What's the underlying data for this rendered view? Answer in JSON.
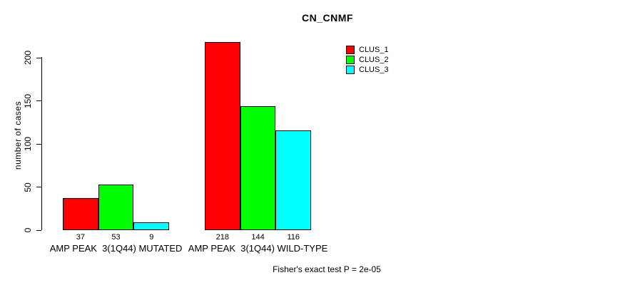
{
  "title": "CN_CNMF",
  "y_axis": {
    "label": "number of cases"
  },
  "caption": "Fisher's exact test P = 2e-05",
  "legend": {
    "items": [
      {
        "label": "CLUS_1",
        "color": "#FF0000"
      },
      {
        "label": "CLUS_2",
        "color": "#00FF00"
      },
      {
        "label": "CLUS_3",
        "color": "#00FFFF"
      }
    ]
  },
  "chart_data": {
    "type": "bar",
    "title": "CN_CNMF",
    "xlabel": "",
    "ylabel": "number of cases",
    "ylim": [
      0,
      220
    ],
    "yticks": [
      0,
      50,
      100,
      150,
      200
    ],
    "grid": false,
    "legend_position": "top-right",
    "categories": [
      "AMP PEAK  3(1Q44) MUTATED",
      "AMP PEAK  3(1Q44) WILD-TYPE"
    ],
    "series": [
      {
        "name": "CLUS_1",
        "color": "#FF0000",
        "values": [
          37,
          218
        ]
      },
      {
        "name": "CLUS_2",
        "color": "#00FF00",
        "values": [
          53,
          144
        ]
      },
      {
        "name": "CLUS_3",
        "color": "#00FFFF",
        "values": [
          9,
          116
        ]
      }
    ],
    "bar_value_labels": [
      [
        37,
        53,
        9
      ],
      [
        218,
        144,
        116
      ]
    ],
    "annotation": "Fisher's exact test P = 2e-05"
  }
}
